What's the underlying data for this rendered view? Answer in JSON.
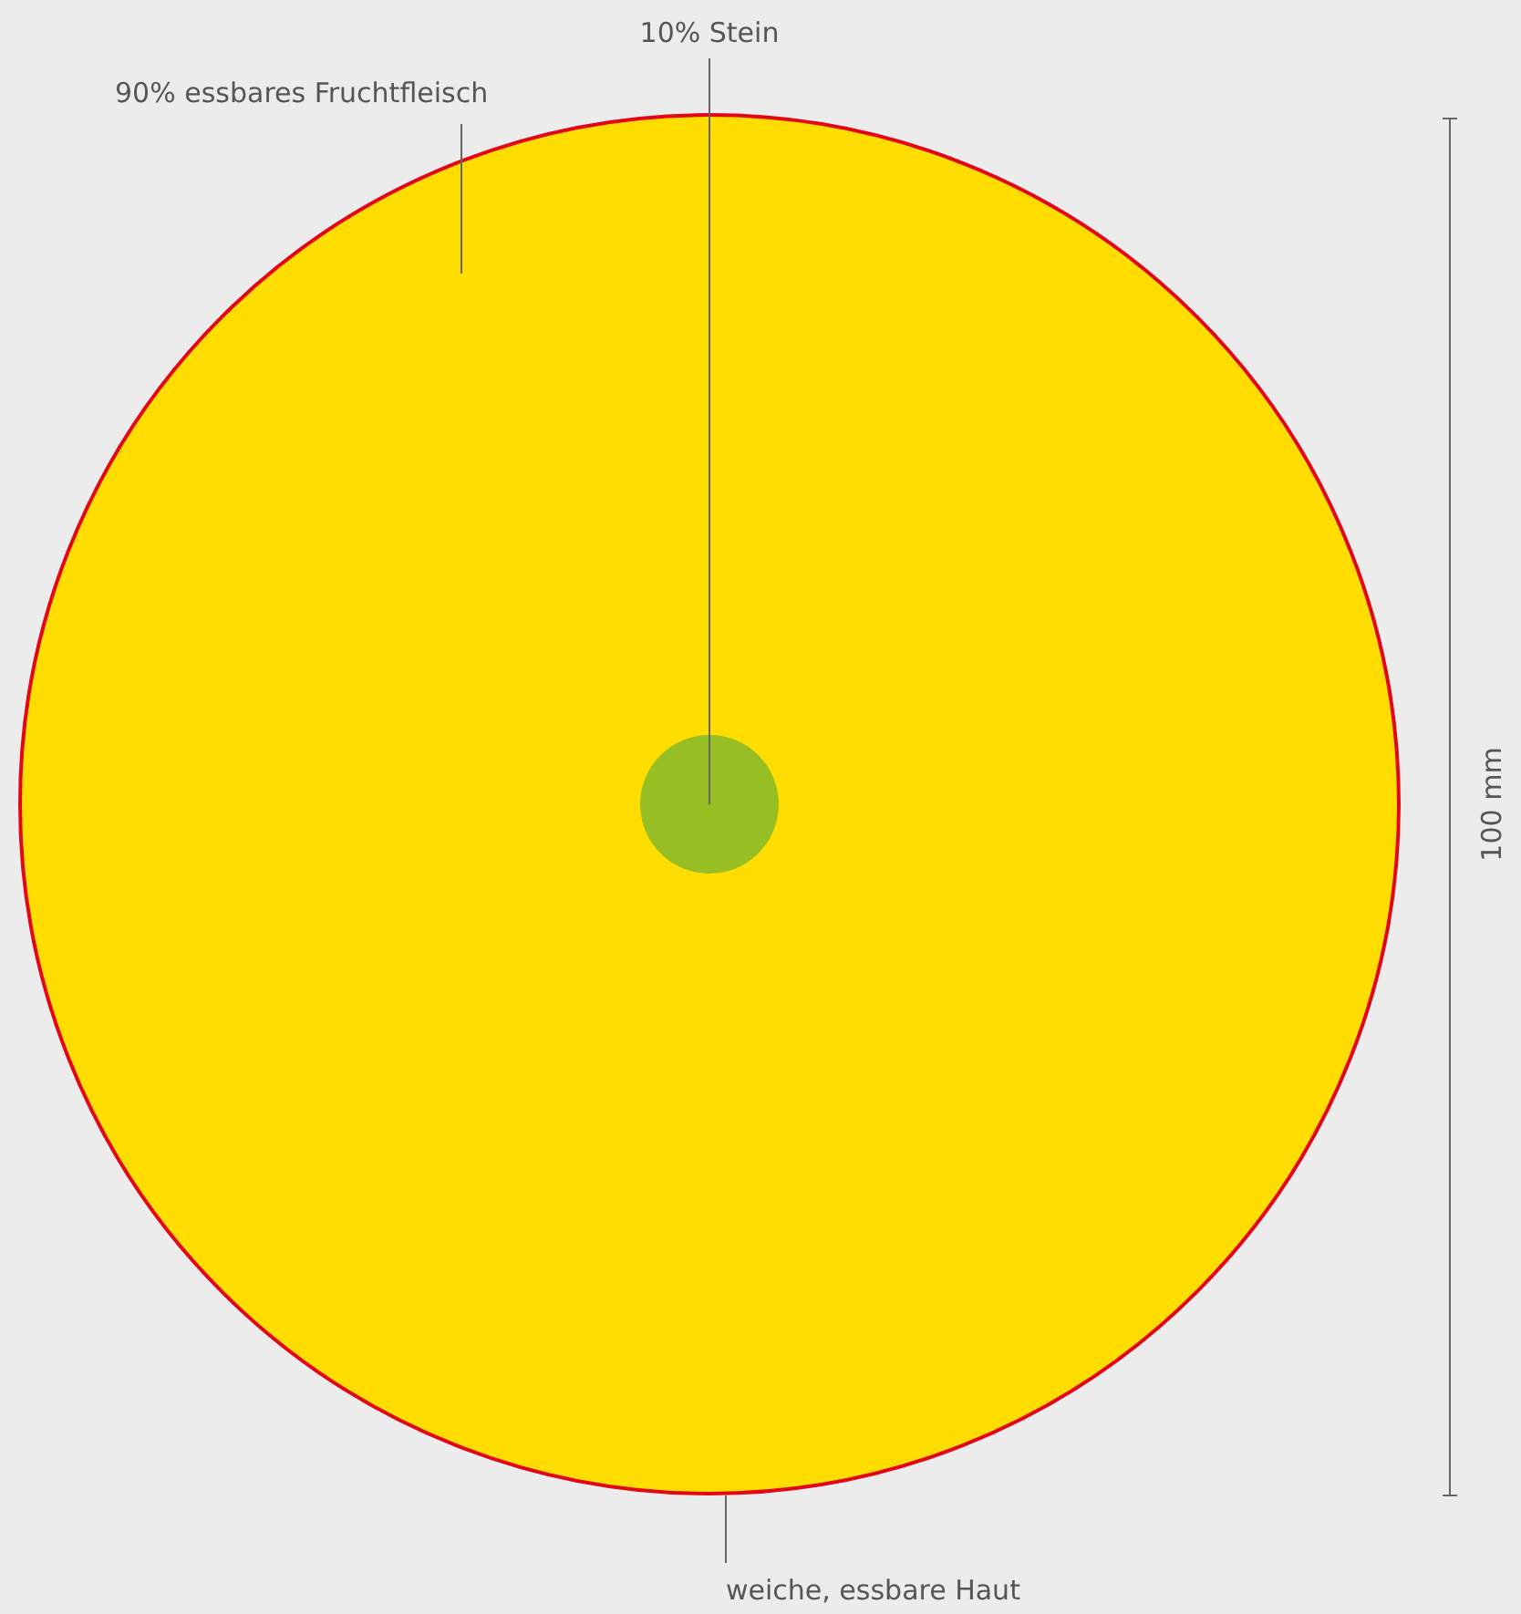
{
  "chart_data": {
    "type": "other",
    "categories": [
      "essbares Fruchtfleisch",
      "Stein"
    ],
    "values": [
      90,
      10
    ],
    "value_labels": [
      "90%",
      "10%"
    ],
    "colors": [
      "#ffdd00",
      "#97bf24"
    ],
    "annotations": [
      "weiche, essbare Haut",
      "100 mm"
    ]
  }
}
